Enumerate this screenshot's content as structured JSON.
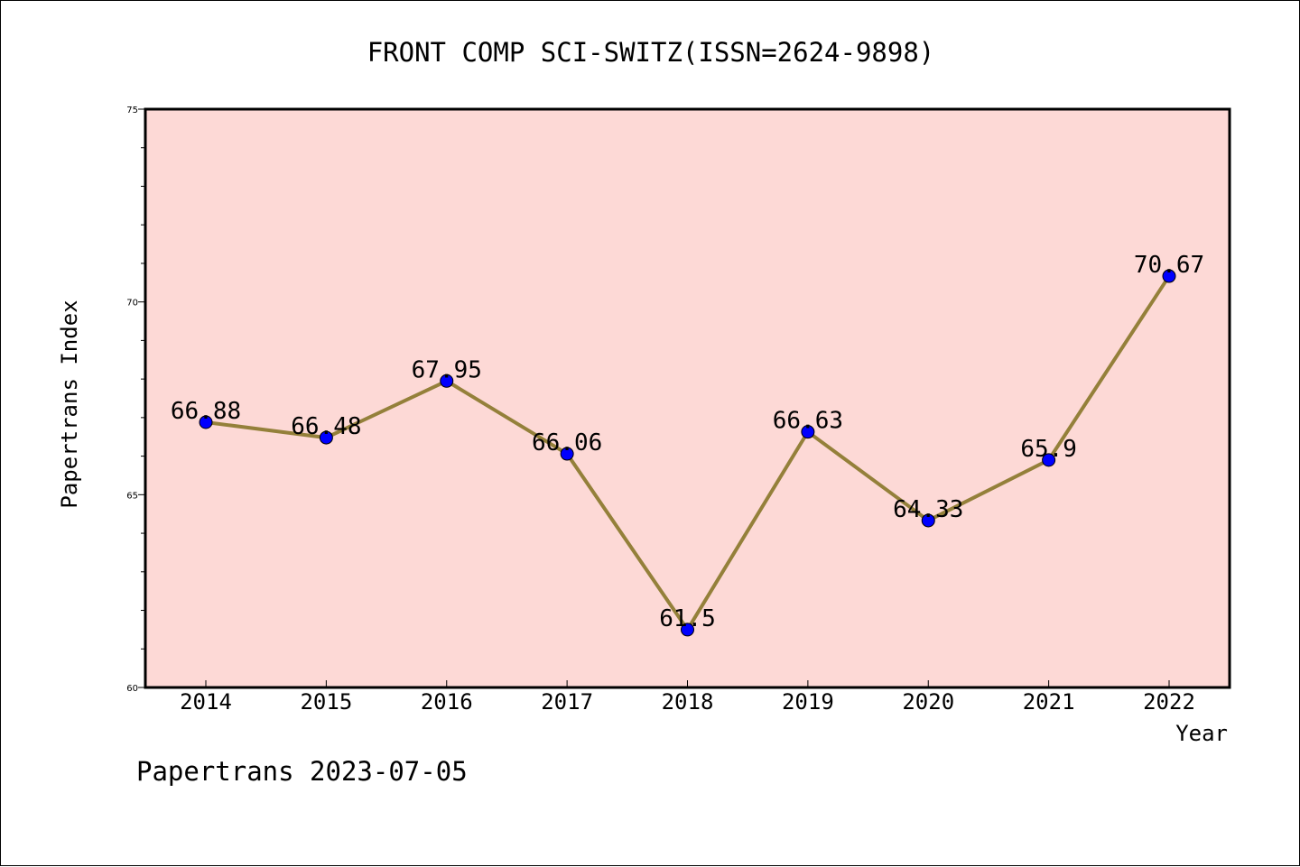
{
  "chart_data": {
    "type": "line",
    "title": "FRONT COMP SCI-SWITZ(ISSN=2624-9898)",
    "xlabel": "Year",
    "ylabel": "Papertrans Index",
    "categories": [
      "2014",
      "2015",
      "2016",
      "2017",
      "2018",
      "2019",
      "2020",
      "2021",
      "2022"
    ],
    "values": [
      66.88,
      66.48,
      67.95,
      66.06,
      61.5,
      66.63,
      64.33,
      65.9,
      70.67
    ],
    "data_labels": [
      "66.88",
      "66.48",
      "67.95",
      "66.06",
      "61.5",
      "66.63",
      "64.33",
      "65.9",
      "70.67"
    ],
    "ylim": [
      60,
      75
    ],
    "y_ticks": [
      "60",
      "65",
      "70",
      "75"
    ],
    "y_minor_step": 1,
    "grid": false,
    "plot_background": "#fdd9d6",
    "line_color": "#94803a",
    "marker_color": "#0000ff",
    "footer": "Papertrans 2023-07-05"
  }
}
